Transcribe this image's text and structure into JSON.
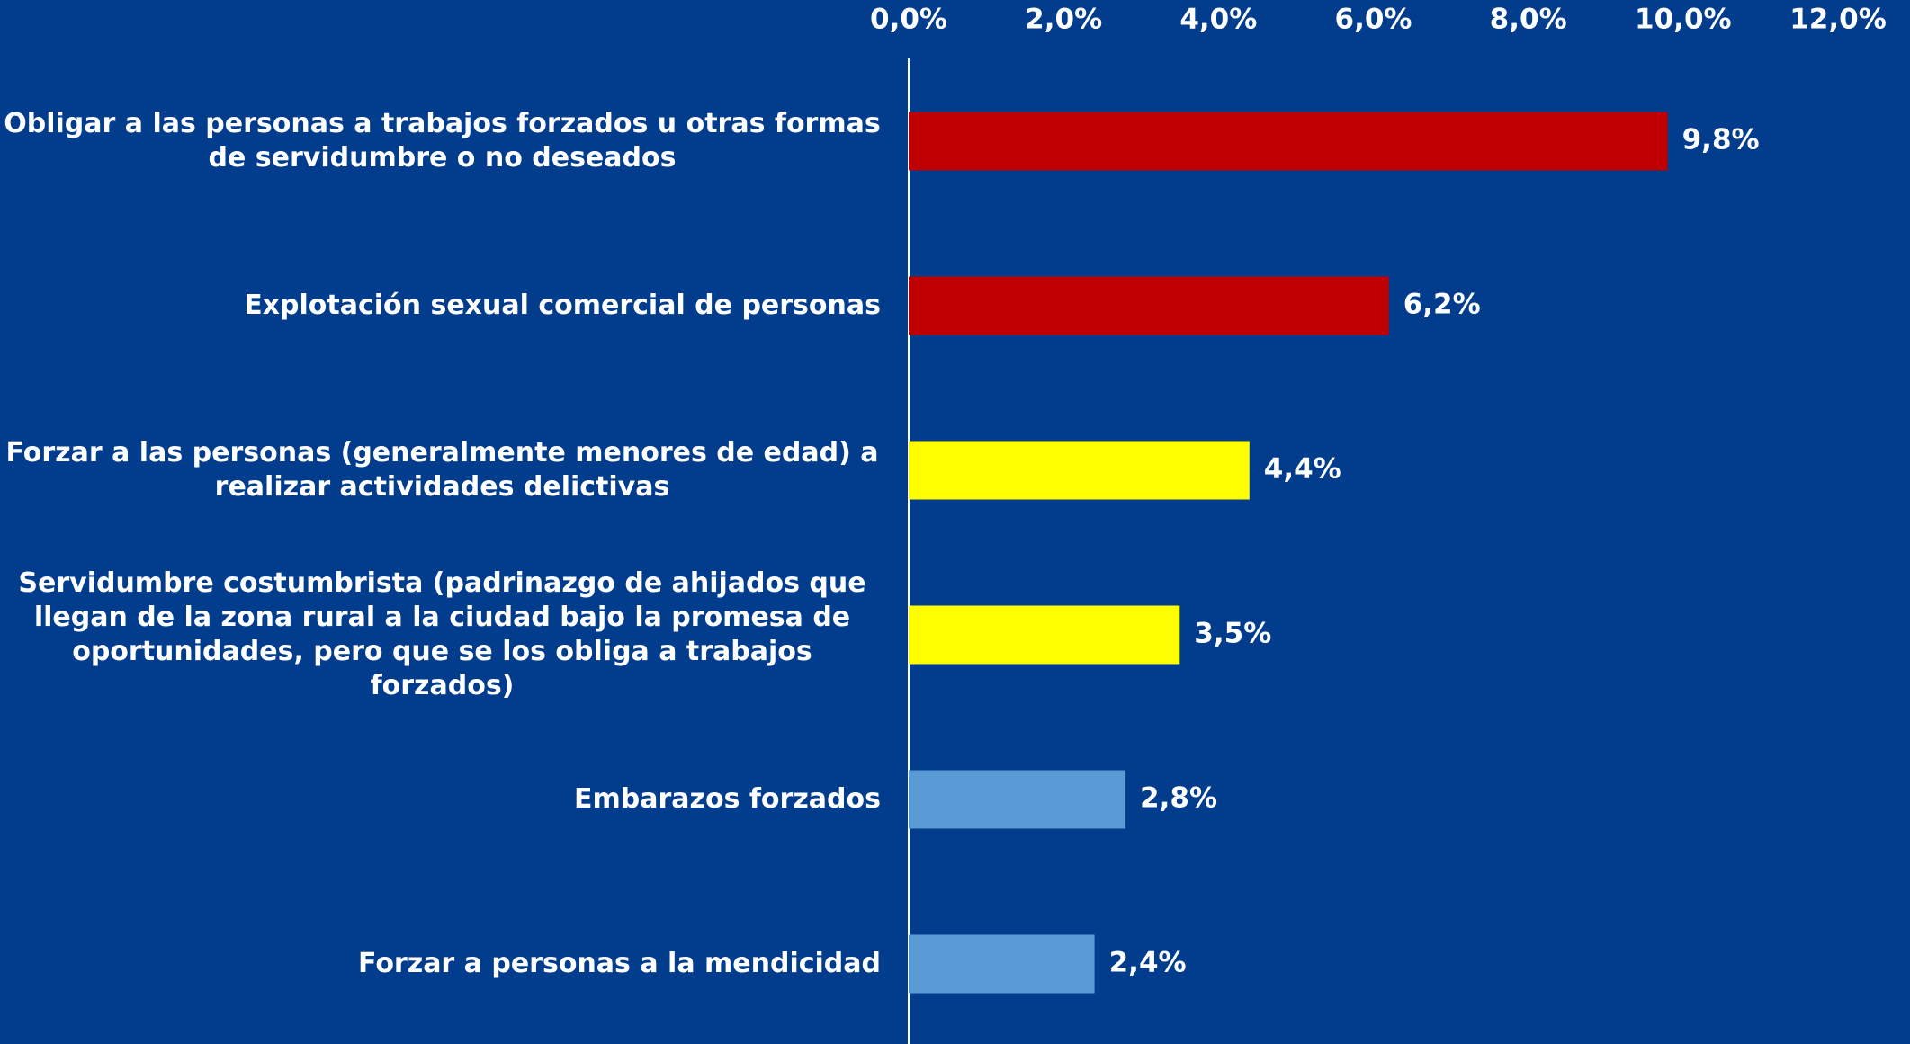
{
  "chart_data": {
    "type": "hbar",
    "categories": [
      "Obligar a las personas a trabajos forzados u otras formas de servidumbre o no deseados",
      "Explotación sexual comercial de personas",
      "Forzar a las personas (generalmente menores de edad) a realizar actividades delictivas",
      "Servidumbre costumbrista (padrinazgo de ahijados que llegan de la zona rural a la ciudad bajo la promesa de oportunidades, pero que se los obliga a trabajos forzados)",
      "Embarazos forzados",
      "Forzar a personas a la mendicidad"
    ],
    "values": [
      9.8,
      6.2,
      4.4,
      3.5,
      2.8,
      2.4
    ],
    "value_labels": [
      "9,8%",
      "6,2%",
      "4,4%",
      "3,5%",
      "2,8%",
      "2,4%"
    ],
    "colors": [
      "#c00000",
      "#c00000",
      "#ffff00",
      "#ffff00",
      "#5b9bd5",
      "#5b9bd5"
    ],
    "xlim": [
      0,
      12
    ],
    "xticks": [
      {
        "value": 0,
        "label": "0,0%"
      },
      {
        "value": 2,
        "label": "2,0%"
      },
      {
        "value": 4,
        "label": "4,0%"
      },
      {
        "value": 6,
        "label": "6,0%"
      },
      {
        "value": 8,
        "label": "8,0%"
      },
      {
        "value": 10,
        "label": "10,0%"
      },
      {
        "value": 12,
        "label": "12,0%"
      }
    ]
  }
}
